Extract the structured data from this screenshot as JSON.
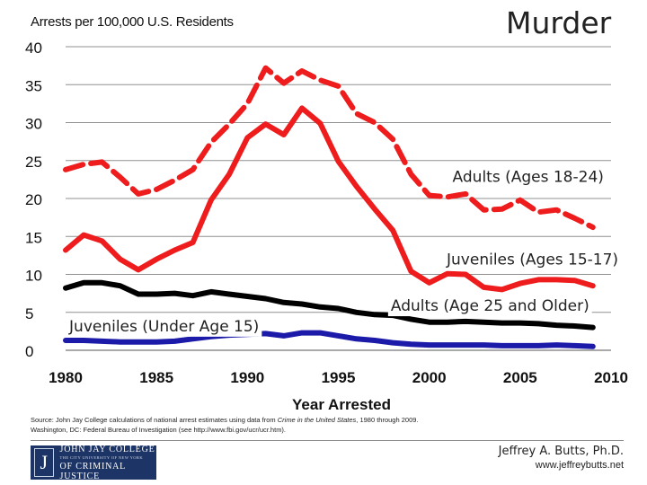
{
  "chart_data": {
    "type": "line",
    "title": "Murder",
    "ylabel": "Arrests per 100,000 U.S. Residents",
    "xlabel": "Year Arrested",
    "xlim": [
      1980,
      2010
    ],
    "ylim": [
      0,
      40
    ],
    "xticks": [
      1980,
      1985,
      1990,
      1995,
      2000,
      2005,
      2010
    ],
    "yticks": [
      0,
      5,
      10,
      15,
      20,
      25,
      30,
      35,
      40
    ],
    "grid": "horizontal",
    "x": [
      1980,
      1981,
      1982,
      1983,
      1984,
      1985,
      1986,
      1987,
      1988,
      1989,
      1990,
      1991,
      1992,
      1993,
      1994,
      1995,
      1996,
      1997,
      1998,
      1999,
      2000,
      2001,
      2002,
      2003,
      2004,
      2005,
      2006,
      2007,
      2008,
      2009
    ],
    "series": [
      {
        "name": "Adults (Ages 18-24)",
        "color": "#ee1c1c",
        "dash": "dashed",
        "values": [
          23.8,
          24.5,
          24.8,
          22.8,
          20.6,
          21.2,
          22.4,
          23.8,
          27.4,
          29.8,
          32.5,
          37.2,
          35.2,
          36.8,
          35.6,
          34.8,
          31.2,
          30.0,
          27.8,
          23.2,
          20.4,
          20.2,
          20.6,
          18.5,
          18.6,
          19.8,
          18.2,
          18.5,
          17.4,
          16.2
        ]
      },
      {
        "name": "Juveniles (Ages 15-17)",
        "color": "#ee1c1c",
        "dash": "solid",
        "values": [
          13.2,
          15.2,
          14.4,
          12.0,
          10.6,
          12.0,
          13.2,
          14.2,
          19.8,
          23.2,
          28.0,
          29.8,
          28.4,
          31.9,
          29.9,
          24.9,
          21.6,
          18.6,
          15.8,
          10.4,
          8.9,
          10.1,
          10.0,
          8.3,
          8.0,
          8.8,
          9.3,
          9.3,
          9.2,
          8.5
        ]
      },
      {
        "name": "Adults (Age 25 and Older)",
        "color": "#000000",
        "dash": "solid",
        "values": [
          8.2,
          8.9,
          8.9,
          8.5,
          7.4,
          7.4,
          7.5,
          7.2,
          7.7,
          7.4,
          7.1,
          6.8,
          6.3,
          6.1,
          5.7,
          5.5,
          5.0,
          4.7,
          4.6,
          4.1,
          3.7,
          3.7,
          3.8,
          3.7,
          3.6,
          3.6,
          3.5,
          3.3,
          3.2,
          3.0
        ]
      },
      {
        "name": "Juveniles (Under Age 15)",
        "color": "#1c1aa8",
        "dash": "solid",
        "values": [
          1.3,
          1.3,
          1.2,
          1.1,
          1.1,
          1.1,
          1.2,
          1.5,
          1.8,
          2.0,
          2.1,
          2.2,
          1.9,
          2.3,
          2.3,
          1.9,
          1.5,
          1.3,
          1.0,
          0.8,
          0.7,
          0.7,
          0.7,
          0.7,
          0.6,
          0.6,
          0.6,
          0.7,
          0.6,
          0.5
        ]
      }
    ],
    "annotations": [
      {
        "text": "Adults (Ages 18-24)",
        "series": 0
      },
      {
        "text": "Juveniles (Ages 15-17)",
        "series": 1
      },
      {
        "text": "Adults (Age 25 and Older)",
        "series": 2
      },
      {
        "text": "Juveniles (Under Age 15)",
        "series": 3
      }
    ]
  },
  "source": {
    "prefix": "Source: John Jay College calculations of national arrest estimates using data from ",
    "italic": "Crime in the United States",
    "suffix": ", 1980 through 2009.",
    "line2": "Washington, DC: Federal Bureau of Investigation (see http://www.fbi.gov/ucr/ucr.htm)."
  },
  "logo": {
    "mark": "J",
    "line1": "JOHN JAY COLLEGE",
    "line2": "THE CITY UNIVERSITY OF NEW YORK",
    "line3": "OF CRIMINAL JUSTICE"
  },
  "author": {
    "name": "Jeffrey A. Butts, Ph.D.",
    "site": "www.jeffreybutts.net"
  }
}
